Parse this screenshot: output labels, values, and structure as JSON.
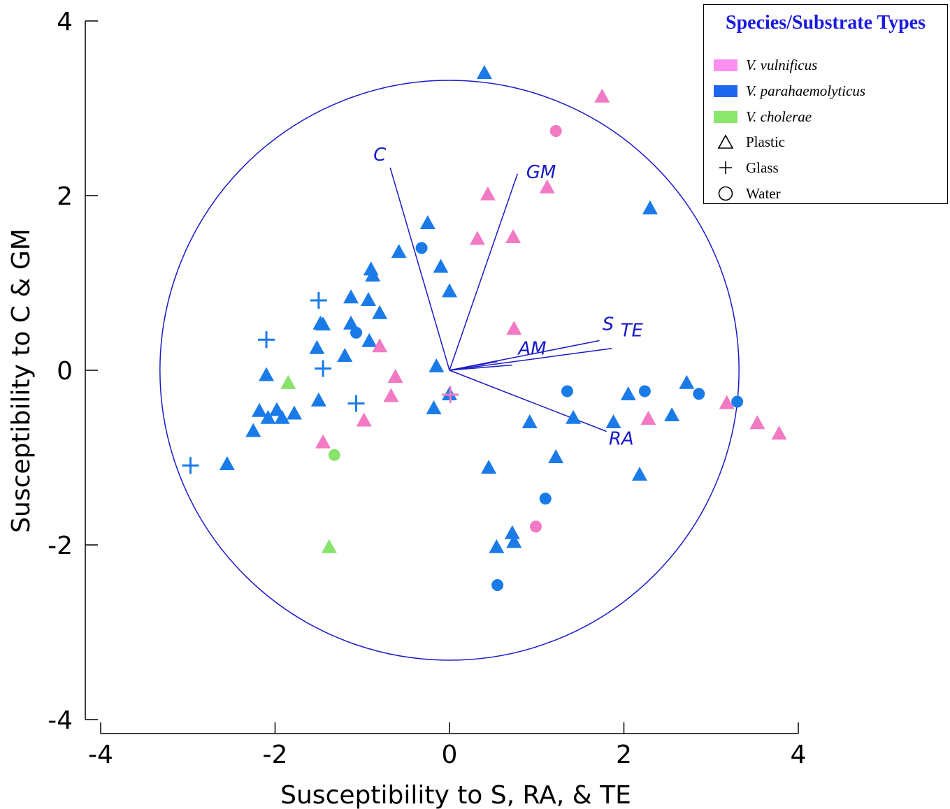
{
  "chart_data": {
    "type": "scatter",
    "xlabel": "Susceptibility to S, RA, & TE",
    "ylabel": "Susceptibility to C & GM",
    "xlim": [
      -4,
      4
    ],
    "ylim": [
      -4,
      4
    ],
    "xticks": [
      -4,
      -2,
      0,
      2,
      4
    ],
    "yticks": [
      -4,
      -2,
      0,
      2,
      4
    ],
    "xtick_labels": [
      "-4",
      "-2",
      "0",
      "2",
      "4"
    ],
    "ytick_labels": [
      "-4",
      "-2",
      "0",
      "2",
      "4"
    ],
    "grid": false,
    "legend_position": "top-right",
    "circle": {
      "center": [
        0,
        0
      ],
      "radius": 3.32
    },
    "colors": {
      "V. vulnificus": "#f279c3",
      "V. parahaemolyticus": "#1a7be8",
      "V. cholerae": "#88e36b",
      "biplot": "#1a1ac8"
    },
    "legend": {
      "title": "Species/Substrate Types",
      "species": [
        "V. vulnificus",
        "V. parahaemolyticus",
        "V. cholerae"
      ],
      "substrates": [
        "Plastic",
        "Glass",
        "Water"
      ]
    },
    "vectors": [
      {
        "label": "C",
        "x": -0.68,
        "y": 2.32
      },
      {
        "label": "GM",
        "x": 0.78,
        "y": 2.25
      },
      {
        "label": "S",
        "x": 1.72,
        "y": 0.34
      },
      {
        "label": "TE",
        "x": 1.86,
        "y": 0.25
      },
      {
        "label": "AM",
        "x": 0.72,
        "y": 0.06
      },
      {
        "label": "AM",
        "x": 0.55,
        "y": 0.1
      },
      {
        "label": "RA",
        "x": 1.8,
        "y": -0.7
      }
    ],
    "vector_labels": [
      {
        "label": "C",
        "x": -0.8,
        "y": 2.4
      },
      {
        "label": "GM",
        "x": 1.05,
        "y": 2.2
      },
      {
        "label": "S",
        "x": 1.82,
        "y": 0.46
      },
      {
        "label": "TE",
        "x": 2.09,
        "y": 0.39
      },
      {
        "label": "AM",
        "x": 0.95,
        "y": 0.18
      },
      {
        "label": "RA",
        "x": 1.97,
        "y": -0.85
      }
    ],
    "series": [
      {
        "name": "V. parahaemolyticus",
        "substrate": "Plastic",
        "points": [
          [
            0.4,
            3.4
          ],
          [
            2.3,
            1.85
          ],
          [
            -0.25,
            1.68
          ],
          [
            -0.58,
            1.35
          ],
          [
            -0.9,
            1.15
          ],
          [
            -0.88,
            1.08
          ],
          [
            -0.1,
            1.18
          ],
          [
            0.0,
            0.9
          ],
          [
            -1.13,
            0.83
          ],
          [
            -0.93,
            0.8
          ],
          [
            -0.8,
            0.65
          ],
          [
            -1.48,
            0.53
          ],
          [
            -1.45,
            0.52
          ],
          [
            -1.13,
            0.53
          ],
          [
            -0.92,
            0.33
          ],
          [
            -1.52,
            0.25
          ],
          [
            -1.2,
            0.16
          ],
          [
            -0.15,
            0.04
          ],
          [
            -2.1,
            -0.06
          ],
          [
            -2.18,
            -0.47
          ],
          [
            -2.08,
            -0.55
          ],
          [
            -1.98,
            -0.46
          ],
          [
            -1.92,
            -0.55
          ],
          [
            -1.78,
            -0.5
          ],
          [
            -2.25,
            -0.7
          ],
          [
            -1.5,
            -0.35
          ],
          [
            -2.55,
            -1.08
          ],
          [
            -0.18,
            -0.44
          ],
          [
            0.0,
            -0.28
          ],
          [
            0.92,
            -0.6
          ],
          [
            1.42,
            -0.55
          ],
          [
            1.88,
            -0.6
          ],
          [
            2.05,
            -0.28
          ],
          [
            2.55,
            -0.52
          ],
          [
            2.72,
            -0.15
          ],
          [
            1.22,
            -1.0
          ],
          [
            2.18,
            -1.2
          ],
          [
            0.45,
            -1.12
          ],
          [
            0.72,
            -1.87
          ],
          [
            0.74,
            -1.97
          ],
          [
            0.54,
            -2.03
          ]
        ]
      },
      {
        "name": "V. parahaemolyticus",
        "substrate": "Water",
        "points": [
          [
            -0.32,
            1.4
          ],
          [
            -1.07,
            0.43
          ],
          [
            1.35,
            -0.24
          ],
          [
            2.24,
            -0.24
          ],
          [
            2.86,
            -0.27
          ],
          [
            3.3,
            -0.36
          ],
          [
            1.1,
            -1.47
          ],
          [
            0.55,
            -2.46
          ]
        ]
      },
      {
        "name": "V. parahaemolyticus",
        "substrate": "Glass",
        "points": [
          [
            -1.5,
            0.8
          ],
          [
            -2.1,
            0.35
          ],
          [
            -1.45,
            0.02
          ],
          [
            -1.07,
            -0.38
          ],
          [
            -2.97,
            -1.09
          ]
        ]
      },
      {
        "name": "V. vulnificus",
        "substrate": "Plastic",
        "points": [
          [
            1.75,
            3.13
          ],
          [
            0.44,
            2.01
          ],
          [
            1.12,
            2.09
          ],
          [
            0.32,
            1.5
          ],
          [
            0.73,
            1.52
          ],
          [
            0.74,
            0.47
          ],
          [
            -0.8,
            0.27
          ],
          [
            -0.62,
            -0.08
          ],
          [
            -0.67,
            -0.3
          ],
          [
            -0.98,
            -0.58
          ],
          [
            -1.45,
            -0.83
          ],
          [
            2.28,
            -0.56
          ],
          [
            3.18,
            -0.38
          ],
          [
            3.53,
            -0.61
          ],
          [
            3.78,
            -0.73
          ]
        ]
      },
      {
        "name": "V. vulnificus",
        "substrate": "Water",
        "points": [
          [
            1.22,
            2.74
          ],
          [
            0.99,
            -1.79
          ]
        ]
      },
      {
        "name": "V. vulnificus",
        "substrate": "Glass",
        "points": [
          [
            0.01,
            -0.28
          ]
        ]
      },
      {
        "name": "V. cholerae",
        "substrate": "Plastic",
        "points": [
          [
            -1.85,
            -0.15
          ],
          [
            -1.38,
            -2.03
          ]
        ]
      },
      {
        "name": "V. cholerae",
        "substrate": "Water",
        "points": [
          [
            -1.32,
            -0.97
          ]
        ]
      }
    ]
  }
}
